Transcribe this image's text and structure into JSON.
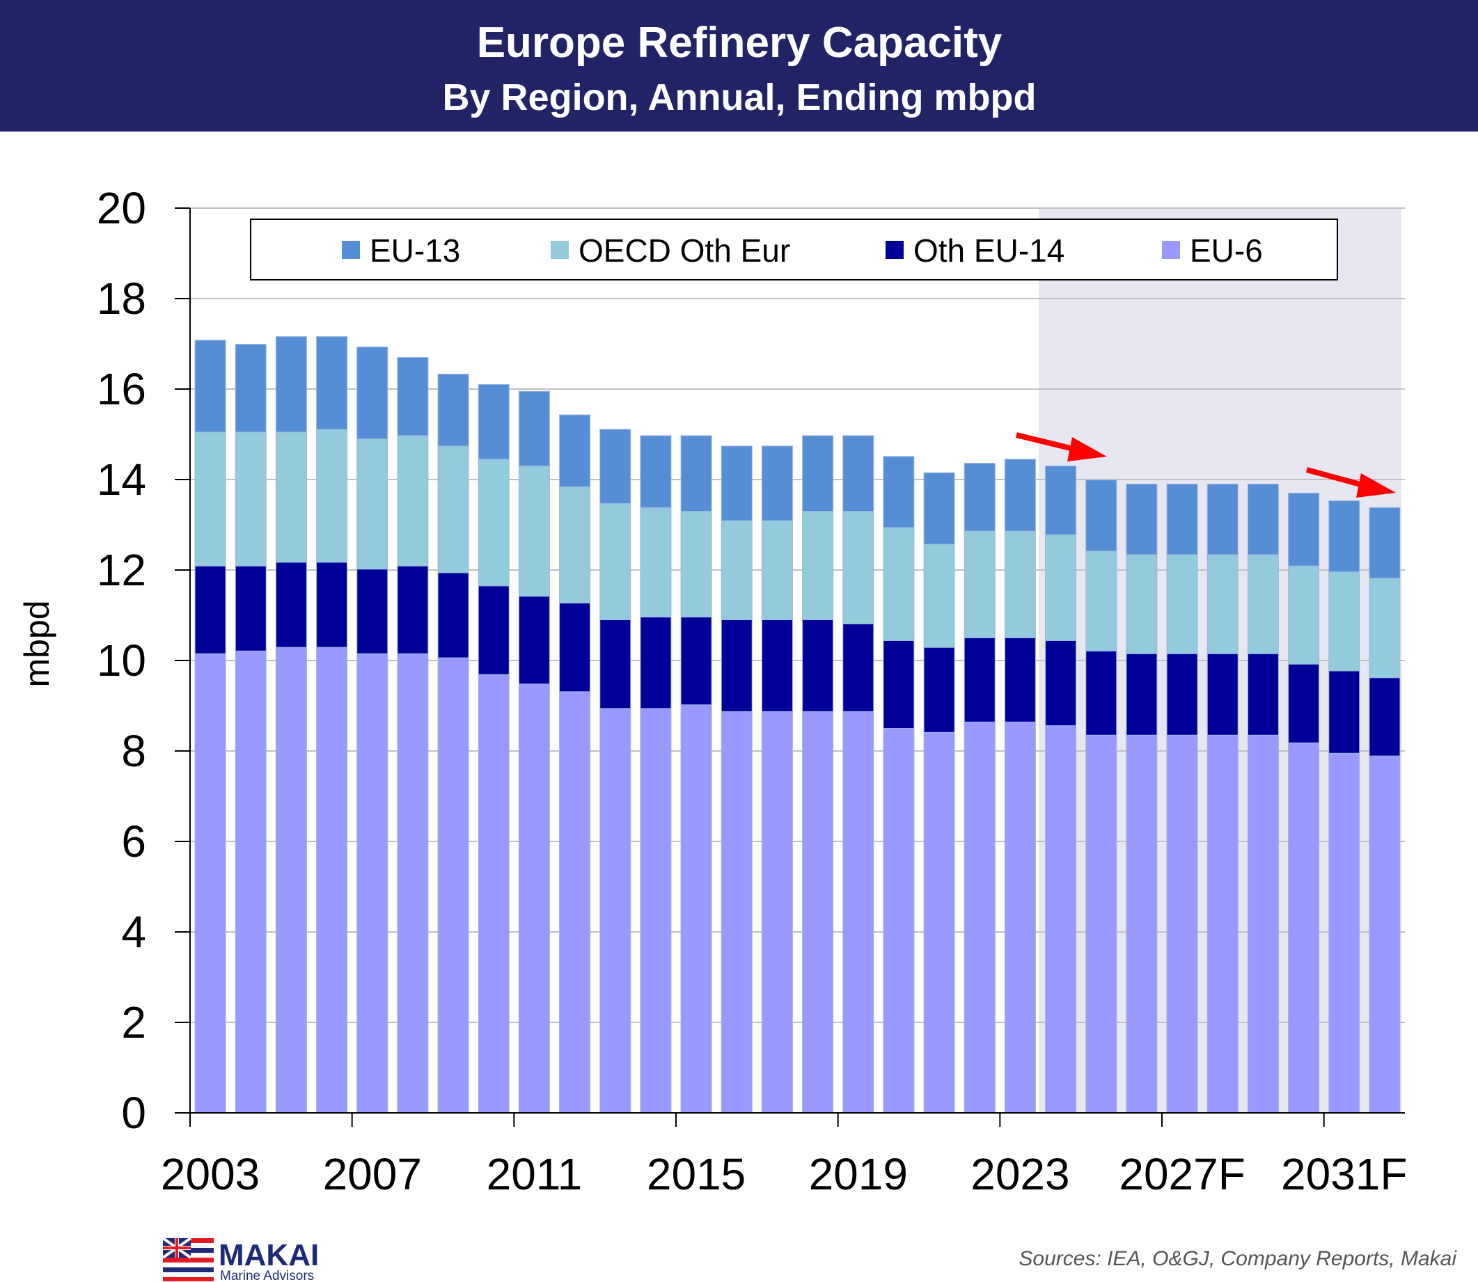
{
  "chart_data": {
    "type": "bar",
    "stacked": true,
    "title": "Europe Refinery Capacity",
    "subtitle": "By Region, Annual, Ending mbpd",
    "xlabel": "",
    "ylabel": "mbpd",
    "ylim": [
      0,
      20
    ],
    "yticks": [
      0,
      2,
      4,
      6,
      8,
      10,
      12,
      14,
      16,
      18,
      20
    ],
    "grid": true,
    "legend_position": "top",
    "categories": [
      "2003",
      "2004",
      "2005",
      "2006",
      "2007",
      "2008",
      "2009",
      "2010",
      "2011",
      "2012",
      "2013",
      "2014",
      "2015",
      "2016",
      "2017",
      "2018",
      "2019",
      "2020",
      "2021",
      "2022",
      "2023",
      "2024",
      "2025F",
      "2026F",
      "2027F",
      "2028F",
      "2029F",
      "2030F",
      "2031F",
      "2032F"
    ],
    "xtick_labels": [
      "2003",
      "2007",
      "2011",
      "2015",
      "2019",
      "2023",
      "2027F",
      "2031F"
    ],
    "forecast_shaded_from": "2024",
    "series": [
      {
        "name": "EU-6",
        "color": "#9999FF",
        "values": [
          10.15,
          10.21,
          10.29,
          10.29,
          10.15,
          10.15,
          10.06,
          9.69,
          9.48,
          9.31,
          8.94,
          8.94,
          9.02,
          8.87,
          8.87,
          8.87,
          8.87,
          8.5,
          8.41,
          8.64,
          8.64,
          8.56,
          8.35,
          8.35,
          8.35,
          8.35,
          8.35,
          8.18,
          7.95,
          7.89
        ]
      },
      {
        "name": "Oth EU-14",
        "color": "#000099",
        "values": [
          1.94,
          1.88,
          1.88,
          1.88,
          1.87,
          1.94,
          1.88,
          1.96,
          1.94,
          1.96,
          1.96,
          2.02,
          1.94,
          2.03,
          2.03,
          2.03,
          1.94,
          1.94,
          1.88,
          1.86,
          1.86,
          1.88,
          1.86,
          1.8,
          1.8,
          1.8,
          1.8,
          1.74,
          1.82,
          1.73
        ]
      },
      {
        "name": "OECD Oth Eur",
        "color": "#93CBDD",
        "values": [
          2.96,
          2.96,
          2.88,
          2.94,
          2.88,
          2.88,
          2.8,
          2.8,
          2.88,
          2.57,
          2.57,
          2.42,
          2.34,
          2.19,
          2.19,
          2.4,
          2.49,
          2.5,
          2.28,
          2.36,
          2.36,
          2.34,
          2.21,
          2.19,
          2.19,
          2.19,
          2.19,
          2.17,
          2.19,
          2.2
        ]
      },
      {
        "name": "EU-13",
        "color": "#558ED5",
        "values": [
          2.03,
          1.94,
          2.11,
          2.05,
          2.03,
          1.73,
          1.59,
          1.65,
          1.65,
          1.59,
          1.64,
          1.59,
          1.67,
          1.65,
          1.65,
          1.67,
          1.67,
          1.57,
          1.58,
          1.5,
          1.59,
          1.52,
          1.57,
          1.56,
          1.56,
          1.56,
          1.56,
          1.61,
          1.57,
          1.56
        ]
      }
    ],
    "legend_order": [
      "EU-13",
      "OECD Oth Eur",
      "Oth EU-14",
      "EU-6"
    ],
    "annotations": [
      "red-arrow-decline-2023-2025",
      "red-arrow-decline-2030-2032"
    ]
  },
  "header": {
    "bg_color": "#222266"
  },
  "footer": {
    "sources": "Sources: IEA, O&GJ, Company Reports, Makai",
    "logo_name": "MAKAI",
    "logo_tagline": "Marine Advisors"
  }
}
